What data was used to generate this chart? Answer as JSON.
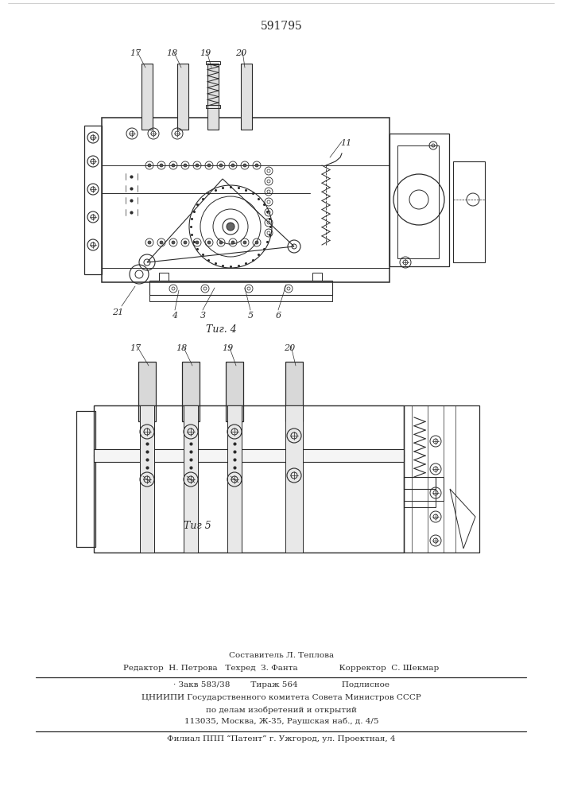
{
  "patent_number": "591795",
  "background_color": "#ffffff",
  "line_color": "#2a2a2a",
  "fig_width": 7.07,
  "fig_height": 10.0,
  "dpi": 100,
  "fig4_caption": "Τиг. 4",
  "fig5_caption": "Τиг 5",
  "footer_lines": [
    "Составитель Л. Теплова",
    "Редактор  Н. Петрова   Техред  З. Фанта                Корректор  С. Шекмар",
    "· Закв 583/38        Тираж 564                 Подлисное",
    "ЦНИИПИ Государственного комитета Совета Министров СССР",
    "по делам изобретений и открытий",
    "113035, Москва, Ж-35, Раушская наб., д. 4/5",
    "Филиал ППП “Патент” г. Ужгород, ул. Проектная, 4"
  ]
}
